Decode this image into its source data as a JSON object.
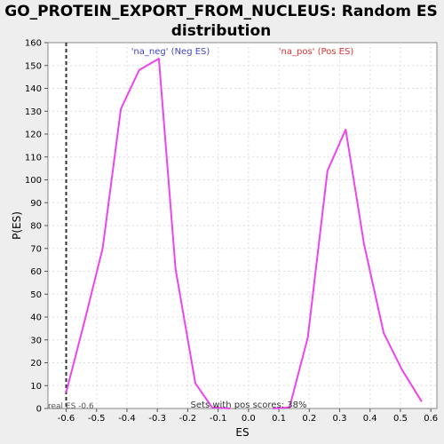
{
  "chart_data": {
    "type": "line",
    "title": "GO_PROTEIN_EXPORT_FROM_NUCLEUS: Random ES distribution",
    "title_lines": [
      "GO_PROTEIN_EXPORT_FROM_NUCLEUS: Random ES",
      "distribution"
    ],
    "xlabel": "ES",
    "ylabel": "P(ES)",
    "xlim": [
      -0.66,
      0.62
    ],
    "ylim": [
      0,
      160
    ],
    "x_ticks": [
      -0.6,
      -0.5,
      -0.4,
      -0.3,
      -0.2,
      -0.1,
      0.0,
      0.1,
      0.2,
      0.3,
      0.4,
      0.5,
      0.6
    ],
    "x_tick_labels": [
      "-0.6",
      "-0.5",
      "-0.4",
      "-0.3",
      "-0.2",
      "-0.1",
      "0.0",
      "0.1",
      "0.2",
      "0.3",
      "0.4",
      "0.5",
      "0.6"
    ],
    "y_ticks": [
      0,
      10,
      20,
      30,
      40,
      50,
      60,
      70,
      80,
      90,
      100,
      110,
      120,
      130,
      140,
      150,
      160
    ],
    "grid": true,
    "series": [
      {
        "name": "'na_neg' (Neg ES)",
        "color": "#ee44ee",
        "label_color": "#4444cc",
        "x": [
          -0.6,
          -0.54,
          -0.48,
          -0.42,
          -0.36,
          -0.295,
          -0.24,
          -0.175,
          -0.12,
          -0.06
        ],
        "y": [
          7,
          38,
          70,
          131,
          148,
          153,
          61,
          11,
          0.5,
          0
        ]
      },
      {
        "name": "'na_pos' (Pos ES)",
        "color": "#ee44ee",
        "label_color": "#dd3333",
        "x": [
          0.08,
          0.135,
          0.195,
          0.26,
          0.32,
          0.38,
          0.445,
          0.505,
          0.57
        ],
        "y": [
          0,
          0.5,
          31,
          104,
          122,
          72,
          33,
          17,
          3
        ]
      }
    ],
    "real_es": {
      "x": -0.6,
      "label": "real ES -0.6",
      "color": "#333333"
    },
    "annotation": "Sets with pos scores: 38%"
  }
}
